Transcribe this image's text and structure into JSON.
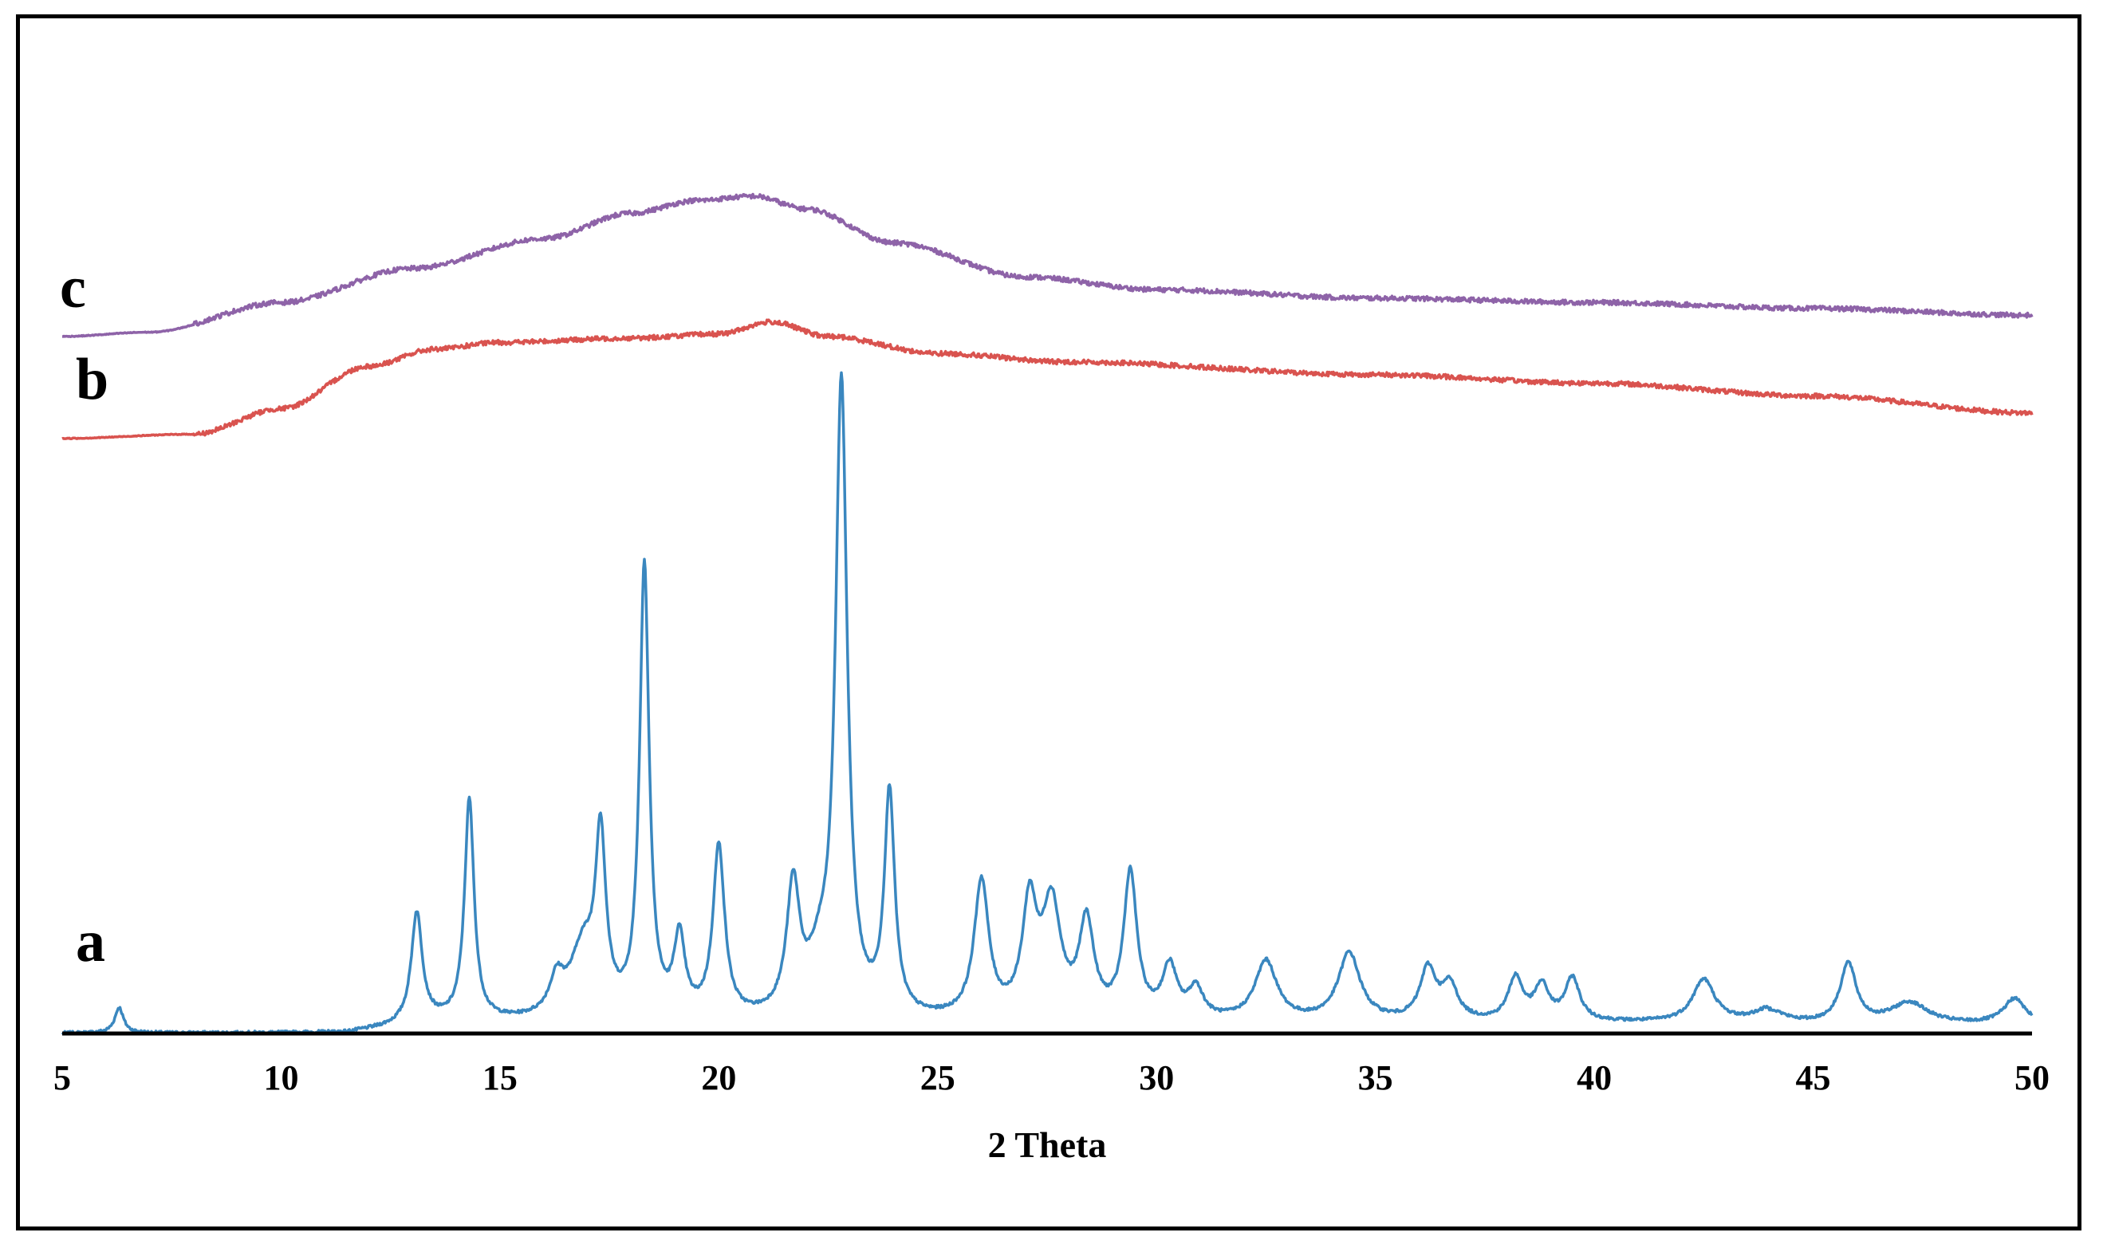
{
  "chart_data": {
    "type": "line",
    "title": "",
    "xlabel": "2 Theta",
    "ylabel": "",
    "xlim": [
      5,
      50
    ],
    "ylim": [
      0,
      100
    ],
    "grid": false,
    "xticks": [
      5,
      10,
      15,
      20,
      25,
      30,
      35,
      40,
      45,
      50
    ],
    "series": [
      {
        "name": "a",
        "color": "#3a87bf",
        "baseline": 0,
        "peaks": [
          {
            "x": 6.3,
            "h": 3,
            "w": 0.12
          },
          {
            "x": 13.1,
            "h": 13,
            "w": 0.15
          },
          {
            "x": 14.3,
            "h": 26,
            "w": 0.13
          },
          {
            "x": 16.3,
            "h": 4,
            "w": 0.2
          },
          {
            "x": 16.9,
            "h": 8,
            "w": 0.35
          },
          {
            "x": 17.3,
            "h": 20,
            "w": 0.14
          },
          {
            "x": 18.3,
            "h": 53,
            "w": 0.13
          },
          {
            "x": 19.1,
            "h": 9,
            "w": 0.15
          },
          {
            "x": 20.0,
            "h": 20,
            "w": 0.16
          },
          {
            "x": 21.7,
            "h": 15,
            "w": 0.18
          },
          {
            "x": 22.3,
            "h": 5,
            "w": 0.3
          },
          {
            "x": 22.8,
            "h": 74,
            "w": 0.16
          },
          {
            "x": 23.9,
            "h": 26,
            "w": 0.14
          },
          {
            "x": 26.0,
            "h": 16,
            "w": 0.2
          },
          {
            "x": 27.1,
            "h": 13,
            "w": 0.2
          },
          {
            "x": 27.6,
            "h": 13,
            "w": 0.25
          },
          {
            "x": 28.4,
            "h": 11,
            "w": 0.2
          },
          {
            "x": 29.4,
            "h": 17,
            "w": 0.18
          },
          {
            "x": 30.3,
            "h": 6,
            "w": 0.2
          },
          {
            "x": 30.9,
            "h": 3.5,
            "w": 0.2
          },
          {
            "x": 32.5,
            "h": 7,
            "w": 0.3
          },
          {
            "x": 34.4,
            "h": 8,
            "w": 0.3
          },
          {
            "x": 36.2,
            "h": 6,
            "w": 0.22
          },
          {
            "x": 36.7,
            "h": 4,
            "w": 0.22
          },
          {
            "x": 38.2,
            "h": 5,
            "w": 0.2
          },
          {
            "x": 38.8,
            "h": 4,
            "w": 0.2
          },
          {
            "x": 39.5,
            "h": 5,
            "w": 0.2
          },
          {
            "x": 42.5,
            "h": 5,
            "w": 0.3
          },
          {
            "x": 44.0,
            "h": 1.5,
            "w": 0.4
          },
          {
            "x": 45.8,
            "h": 7,
            "w": 0.22
          },
          {
            "x": 47.2,
            "h": 2.5,
            "w": 0.5
          },
          {
            "x": 49.6,
            "h": 3,
            "w": 0.3
          }
        ]
      },
      {
        "name": "b",
        "color": "#d9534f",
        "profile_x": [
          5,
          8,
          10,
          12,
          13.5,
          15,
          18,
          20,
          21.2,
          22.5,
          25,
          28,
          35,
          40,
          45,
          50
        ],
        "profile_y": [
          70,
          70.5,
          73.5,
          78.5,
          80.5,
          81.3,
          81.8,
          82.3,
          83.7,
          82.0,
          80.0,
          79.0,
          77.5,
          76.5,
          75.0,
          73.0
        ]
      },
      {
        "name": "c",
        "color": "#8e63a8",
        "profile_x": [
          5,
          7,
          10,
          13,
          16,
          18,
          19.5,
          20.8,
          22,
          24,
          27,
          30,
          35,
          40,
          45,
          50
        ],
        "profile_y": [
          82,
          82.5,
          86,
          90,
          93.5,
          96.5,
          98,
          98.5,
          97,
          93,
          89,
          87.5,
          86.5,
          86,
          85.3,
          84.5
        ]
      }
    ]
  }
}
